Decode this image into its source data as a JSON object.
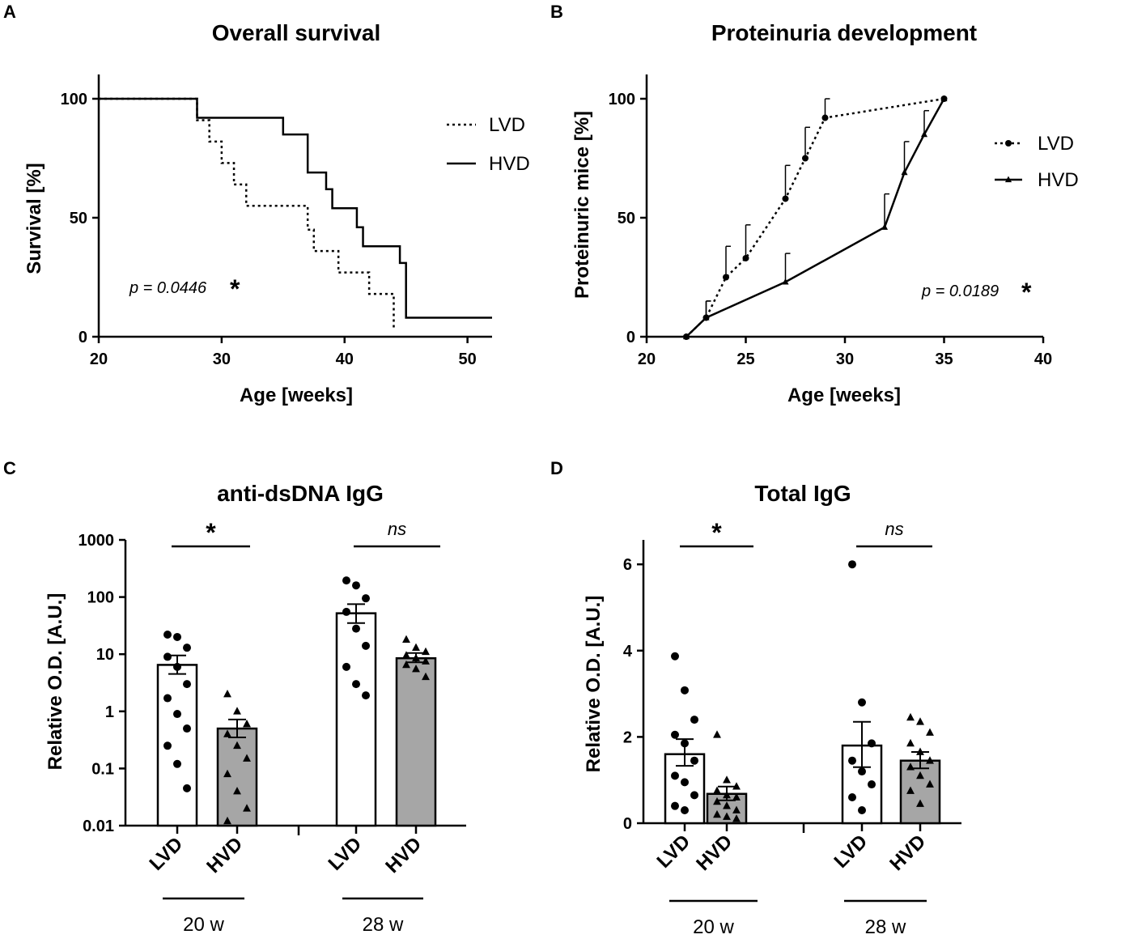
{
  "chart_data": [
    {
      "panel": "A",
      "type": "line",
      "subtype": "kaplan-meier-step",
      "title": "Overall survival",
      "xlabel": "Age [weeks]",
      "ylabel": "Survival [%]",
      "xlim": [
        20,
        52
      ],
      "ylim": [
        0,
        110
      ],
      "xticks": [
        "20",
        "30",
        "40",
        "50"
      ],
      "yticks": [
        "0",
        "50",
        "100"
      ],
      "legend": {
        "position": "top-right",
        "entries": [
          "LVD",
          "HVD"
        ]
      },
      "annotation": {
        "text": "p = 0.0446",
        "star": "*"
      },
      "series": [
        {
          "name": "LVD",
          "style": "dotted",
          "x": [
            20,
            28,
            28,
            29,
            29,
            30,
            30,
            31,
            31,
            32,
            32,
            37,
            37,
            37.5,
            37.5,
            39.5,
            39.5,
            42,
            42,
            44,
            44
          ],
          "y": [
            100,
            100,
            91,
            91,
            82,
            82,
            73,
            73,
            64,
            64,
            55,
            55,
            45,
            45,
            36,
            36,
            27,
            27,
            18,
            18,
            3
          ]
        },
        {
          "name": "HVD",
          "style": "solid",
          "x": [
            20,
            28,
            28,
            35,
            35,
            37,
            37,
            38.5,
            38.5,
            39,
            39,
            41,
            41,
            41.5,
            41.5,
            44.5,
            44.5,
            45,
            45,
            52
          ],
          "y": [
            100,
            100,
            92,
            92,
            85,
            85,
            69,
            69,
            62,
            62,
            54,
            54,
            46,
            46,
            38,
            38,
            31,
            31,
            8,
            8
          ]
        }
      ]
    },
    {
      "panel": "B",
      "type": "line",
      "title": "Proteinuria development",
      "xlabel": "Age [weeks]",
      "ylabel": "Proteinuric mice [%]",
      "xlim": [
        20,
        40
      ],
      "ylim": [
        0,
        110
      ],
      "xticks": [
        "20",
        "25",
        "30",
        "35",
        "40"
      ],
      "yticks": [
        "0",
        "50",
        "100"
      ],
      "legend": {
        "position": "right",
        "entries": [
          "LVD",
          "HVD"
        ]
      },
      "annotation": {
        "text": "p = 0.0189",
        "star": "*"
      },
      "series": [
        {
          "name": "LVD",
          "style": "dotted",
          "marker": "circle",
          "x": [
            22,
            23,
            24,
            25,
            27,
            28,
            29,
            35
          ],
          "y": [
            0,
            8,
            25,
            33,
            58,
            75,
            92,
            100
          ],
          "err": [
            0,
            7,
            13,
            14,
            14,
            13,
            8,
            0
          ]
        },
        {
          "name": "HVD",
          "style": "solid",
          "marker": "triangle",
          "x": [
            22,
            23,
            27,
            32,
            33,
            34,
            35
          ],
          "y": [
            0,
            8,
            23,
            46,
            69,
            85,
            100
          ],
          "err": [
            0,
            7,
            12,
            14,
            13,
            10,
            0
          ]
        }
      ]
    },
    {
      "panel": "C",
      "type": "bar",
      "title": "anti-dsDNA IgG",
      "ylabel": "Relative O.D. [A.U.]",
      "yscale": "log",
      "ylim": [
        0.01,
        1000
      ],
      "yticks": [
        "0.01",
        "0.1",
        "1",
        "10",
        "100",
        "1000"
      ],
      "categories": [
        "LVD",
        "HVD",
        "LVD",
        "HVD"
      ],
      "groups": [
        "20 w",
        "28 w"
      ],
      "significance": [
        "*",
        "ns"
      ],
      "bars": [
        {
          "group": "20 w",
          "name": "LVD",
          "fill": "white",
          "value": 6.5,
          "err_low": 4.5,
          "err_high": 9.5,
          "points": [
            22,
            20,
            13,
            9,
            6,
            3,
            1.7,
            0.9,
            0.5,
            0.25,
            0.12,
            0.045
          ]
        },
        {
          "group": "20 w",
          "name": "HVD",
          "fill": "gray",
          "value": 0.5,
          "err_low": 0.35,
          "err_high": 0.72,
          "points": [
            2,
            1,
            0.6,
            0.4,
            0.25,
            0.15,
            0.08,
            0.04,
            0.02,
            0.012
          ]
        },
        {
          "group": "28 w",
          "name": "LVD",
          "fill": "white",
          "value": 52,
          "err_low": 35,
          "err_high": 75,
          "points": [
            195,
            160,
            95,
            55,
            28,
            14,
            6,
            3,
            1.9
          ]
        },
        {
          "group": "28 w",
          "name": "HVD",
          "fill": "gray",
          "value": 8.5,
          "err_low": 7.2,
          "err_high": 10.5,
          "points": [
            18,
            13,
            11,
            9.5,
            8.5,
            7.5,
            6.5,
            5.5,
            4
          ]
        }
      ]
    },
    {
      "panel": "D",
      "type": "bar",
      "title": "Total IgG",
      "ylabel": "Relative O.D. [A.U.]",
      "ylim": [
        0,
        6.5
      ],
      "yticks": [
        "0",
        "2",
        "4",
        "6"
      ],
      "categories": [
        "LVD",
        "HVD",
        "LVD",
        "HVD"
      ],
      "groups": [
        "20 w",
        "28 w"
      ],
      "significance": [
        "*",
        "ns"
      ],
      "bars": [
        {
          "group": "20 w",
          "name": "LVD",
          "fill": "white",
          "value": 1.6,
          "err_low": 1.33,
          "err_high": 1.95,
          "points": [
            3.87,
            3.08,
            2.4,
            2.05,
            1.85,
            1.45,
            1.1,
            0.95,
            0.65,
            0.4,
            0.3
          ]
        },
        {
          "group": "20 w",
          "name": "HVD",
          "fill": "gray",
          "value": 0.68,
          "err_low": 0.53,
          "err_high": 0.85,
          "points": [
            2.05,
            1.0,
            0.85,
            0.75,
            0.65,
            0.6,
            0.5,
            0.4,
            0.3,
            0.2,
            0.15,
            0.1
          ]
        },
        {
          "group": "28 w",
          "name": "LVD",
          "fill": "white",
          "value": 1.8,
          "err_low": 1.3,
          "err_high": 2.35,
          "points": [
            6.0,
            2.8,
            1.85,
            1.45,
            1.2,
            0.9,
            0.6,
            0.3
          ]
        },
        {
          "group": "28 w",
          "name": "HVD",
          "fill": "gray",
          "value": 1.45,
          "err_low": 1.27,
          "err_high": 1.65,
          "points": [
            2.45,
            2.35,
            2.1,
            1.85,
            1.65,
            1.45,
            1.3,
            1.1,
            0.9,
            0.75,
            0.45
          ]
        }
      ]
    }
  ]
}
